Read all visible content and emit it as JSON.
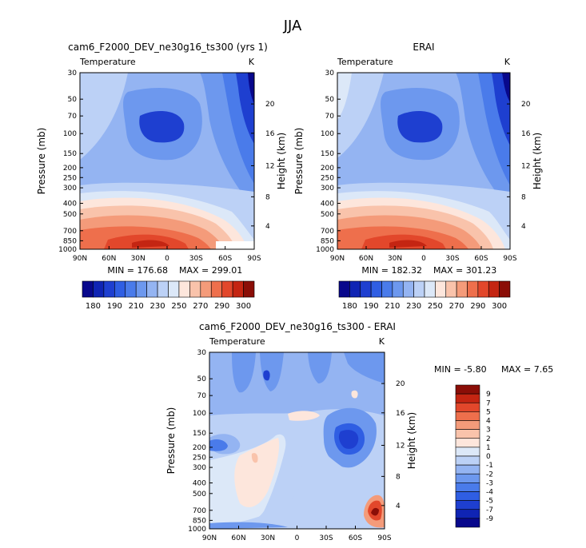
{
  "figure": {
    "season": "JJA",
    "caption_font_note": ""
  },
  "panels": {
    "model": {
      "title": "cam6_F2000_DEV_ne30g16_ts300 (yrs 1)",
      "variable": "Temperature",
      "units": "K",
      "min_label": "MIN = 176.68",
      "max_label": "MAX = 299.01"
    },
    "obs": {
      "title": "ERAI",
      "variable": "Temperature",
      "units": "K",
      "min_label": "MIN = 182.32",
      "max_label": "MAX = 301.23"
    },
    "diff": {
      "title": "cam6_F2000_DEV_ne30g16_ts300 - ERAI",
      "variable": "Temperature",
      "units": "K",
      "min_text": "MIN =   -5.80",
      "max_text": "MAX =    7.65"
    }
  },
  "chart_data": [
    {
      "type": "heatmap",
      "title": "cam6_F2000_DEV_ne30g16_ts300 (yrs 1)",
      "variable": "Temperature",
      "units": "K",
      "xlabel": "Latitude",
      "ylabel": "Pressure (mb)",
      "ylabel_right": "Height (km)",
      "x_ticks": [
        "90N",
        "60N",
        "30N",
        "0",
        "30S",
        "60S",
        "90S"
      ],
      "y_ticks": [
        "30",
        "50",
        "70",
        "100",
        "150",
        "200",
        "250",
        "300",
        "400",
        "500",
        "700",
        "850",
        "1000"
      ],
      "y_right_ticks": [
        "20",
        "16",
        "12",
        "8",
        "4"
      ],
      "min": 176.68,
      "max": 299.01,
      "colorbar_ticks": [
        "180",
        "190",
        "200",
        "210",
        "220",
        "230",
        "240",
        "250",
        "260",
        "270",
        "280",
        "290",
        "300"
      ],
      "colorbar_tick_labels": [
        "180",
        "190",
        "210",
        "230",
        "250",
        "270",
        "290",
        "300"
      ]
    },
    {
      "type": "heatmap",
      "title": "ERAI",
      "variable": "Temperature",
      "units": "K",
      "xlabel": "Latitude",
      "ylabel": "Pressure (mb)",
      "ylabel_right": "Height (km)",
      "x_ticks": [
        "90N",
        "60N",
        "30N",
        "0",
        "30S",
        "60S",
        "90S"
      ],
      "y_ticks": [
        "30",
        "50",
        "70",
        "100",
        "150",
        "200",
        "250",
        "300",
        "400",
        "500",
        "700",
        "850",
        "1000"
      ],
      "y_right_ticks": [
        "20",
        "16",
        "12",
        "8",
        "4"
      ],
      "min": 182.32,
      "max": 301.23,
      "colorbar_tick_labels": [
        "180",
        "190",
        "210",
        "230",
        "250",
        "270",
        "290",
        "300"
      ]
    },
    {
      "type": "heatmap",
      "title": "cam6_F2000_DEV_ne30g16_ts300 - ERAI",
      "variable": "Temperature",
      "units": "K",
      "xlabel": "Latitude",
      "ylabel": "Pressure (mb)",
      "ylabel_right": "Height (km)",
      "x_ticks": [
        "90N",
        "60N",
        "30N",
        "0",
        "30S",
        "60S",
        "90S"
      ],
      "y_ticks": [
        "30",
        "50",
        "70",
        "100",
        "150",
        "200",
        "250",
        "300",
        "400",
        "500",
        "700",
        "850",
        "1000"
      ],
      "y_right_ticks": [
        "20",
        "16",
        "12",
        "8",
        "4"
      ],
      "min": -5.8,
      "max": 7.65,
      "colorbar_tick_labels": [
        "9",
        "7",
        "5",
        "4",
        "3",
        "2",
        "1",
        "0",
        "-1",
        "-2",
        "-3",
        "-4",
        "-5",
        "-7",
        "-9"
      ]
    }
  ],
  "axis_labels": {
    "pressure": "Pressure (mb)",
    "height": "Height (km)"
  },
  "palettes": {
    "temperature": [
      "#08088c",
      "#0f24b4",
      "#1e3fd0",
      "#2f5ee3",
      "#4a7bea",
      "#6d98ee",
      "#94b4f2",
      "#bcd1f6",
      "#dce8f8",
      "#fde6dc",
      "#f9c3ab",
      "#f49b7a",
      "#ee6f4c",
      "#e2472b",
      "#c42512",
      "#8b0e07"
    ],
    "difference": [
      "#8b0e07",
      "#c42512",
      "#e2472b",
      "#ee6f4c",
      "#f49b7a",
      "#f9c3ab",
      "#fde6dc",
      "#dce8f8",
      "#bcd1f6",
      "#94b4f2",
      "#6d98ee",
      "#4a7bea",
      "#2f5ee3",
      "#1e3fd0",
      "#0f24b4",
      "#08088c"
    ]
  }
}
